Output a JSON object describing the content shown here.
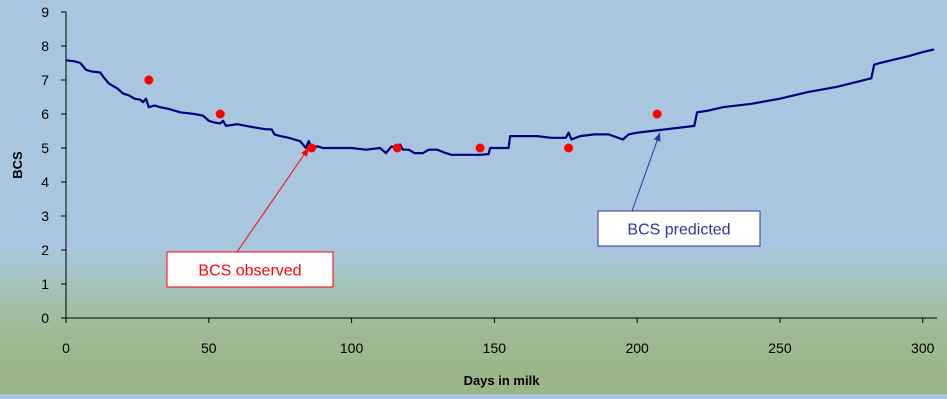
{
  "chart_data": {
    "type": "line",
    "title": "",
    "xlabel": "Days in milk",
    "ylabel": "BCS",
    "xlim": [
      0,
      305
    ],
    "ylim": [
      0,
      9
    ],
    "x_ticks": [
      0,
      50,
      100,
      150,
      200,
      250,
      300
    ],
    "y_ticks": [
      0,
      1,
      2,
      3,
      4,
      5,
      6,
      7,
      8,
      9
    ],
    "grid": false,
    "series": [
      {
        "name": "BCS predicted",
        "kind": "line",
        "color": "#000080",
        "points": [
          [
            0,
            7.58
          ],
          [
            3,
            7.55
          ],
          [
            5,
            7.5
          ],
          [
            7,
            7.3
          ],
          [
            9,
            7.25
          ],
          [
            12,
            7.22
          ],
          [
            13,
            7.1
          ],
          [
            15,
            6.9
          ],
          [
            18,
            6.75
          ],
          [
            20,
            6.6
          ],
          [
            22,
            6.55
          ],
          [
            24,
            6.45
          ],
          [
            26,
            6.42
          ],
          [
            27,
            6.35
          ],
          [
            28,
            6.45
          ],
          [
            29,
            6.2
          ],
          [
            31,
            6.25
          ],
          [
            33,
            6.2
          ],
          [
            36,
            6.15
          ],
          [
            40,
            6.05
          ],
          [
            45,
            6.0
          ],
          [
            48,
            5.95
          ],
          [
            50,
            5.8
          ],
          [
            52,
            5.75
          ],
          [
            54,
            5.72
          ],
          [
            55,
            5.8
          ],
          [
            56,
            5.65
          ],
          [
            60,
            5.7
          ],
          [
            65,
            5.62
          ],
          [
            70,
            5.55
          ],
          [
            72,
            5.55
          ],
          [
            73,
            5.4
          ],
          [
            75,
            5.35
          ],
          [
            78,
            5.3
          ],
          [
            80,
            5.25
          ],
          [
            82,
            5.2
          ],
          [
            83,
            5.1
          ],
          [
            84,
            5.0
          ],
          [
            85,
            5.2
          ],
          [
            86,
            5.0
          ],
          [
            88,
            5.05
          ],
          [
            90,
            5.0
          ],
          [
            95,
            5.0
          ],
          [
            100,
            5.0
          ],
          [
            105,
            4.95
          ],
          [
            110,
            5.0
          ],
          [
            112,
            4.85
          ],
          [
            114,
            5.05
          ],
          [
            116,
            5.0
          ],
          [
            117,
            5.1
          ],
          [
            118,
            4.95
          ],
          [
            120,
            4.95
          ],
          [
            122,
            4.85
          ],
          [
            125,
            4.85
          ],
          [
            127,
            4.95
          ],
          [
            130,
            4.95
          ],
          [
            133,
            4.85
          ],
          [
            135,
            4.8
          ],
          [
            140,
            4.8
          ],
          [
            145,
            4.8
          ],
          [
            148,
            4.82
          ],
          [
            148.5,
            5.0
          ],
          [
            152,
            5.0
          ],
          [
            155,
            5.0
          ],
          [
            155.5,
            5.35
          ],
          [
            160,
            5.35
          ],
          [
            165,
            5.35
          ],
          [
            170,
            5.3
          ],
          [
            175,
            5.3
          ],
          [
            176,
            5.45
          ],
          [
            177,
            5.25
          ],
          [
            180,
            5.35
          ],
          [
            185,
            5.4
          ],
          [
            190,
            5.4
          ],
          [
            195,
            5.25
          ],
          [
            197,
            5.4
          ],
          [
            200,
            5.45
          ],
          [
            205,
            5.5
          ],
          [
            210,
            5.55
          ],
          [
            215,
            5.6
          ],
          [
            220,
            5.65
          ],
          [
            221,
            6.05
          ],
          [
            225,
            6.1
          ],
          [
            230,
            6.2
          ],
          [
            240,
            6.3
          ],
          [
            250,
            6.45
          ],
          [
            260,
            6.65
          ],
          [
            270,
            6.8
          ],
          [
            282,
            7.05
          ],
          [
            283,
            7.45
          ],
          [
            285,
            7.5
          ],
          [
            290,
            7.6
          ],
          [
            295,
            7.7
          ],
          [
            300,
            7.82
          ],
          [
            304,
            7.9
          ]
        ]
      },
      {
        "name": "BCS observed",
        "kind": "scatter",
        "color": "#ff0000",
        "points": [
          [
            29,
            7.0
          ],
          [
            54,
            6.0
          ],
          [
            86,
            5.0
          ],
          [
            116,
            5.0
          ],
          [
            145,
            5.0
          ],
          [
            176,
            5.0
          ],
          [
            207,
            6.0
          ]
        ]
      }
    ],
    "annotations": [
      {
        "text": "BCS observed",
        "color": "#ff0000",
        "points_to": [
          85,
          5.0
        ]
      },
      {
        "text": "BCS predicted",
        "color": "#333399",
        "points_to": [
          208,
          5.45
        ]
      }
    ]
  }
}
